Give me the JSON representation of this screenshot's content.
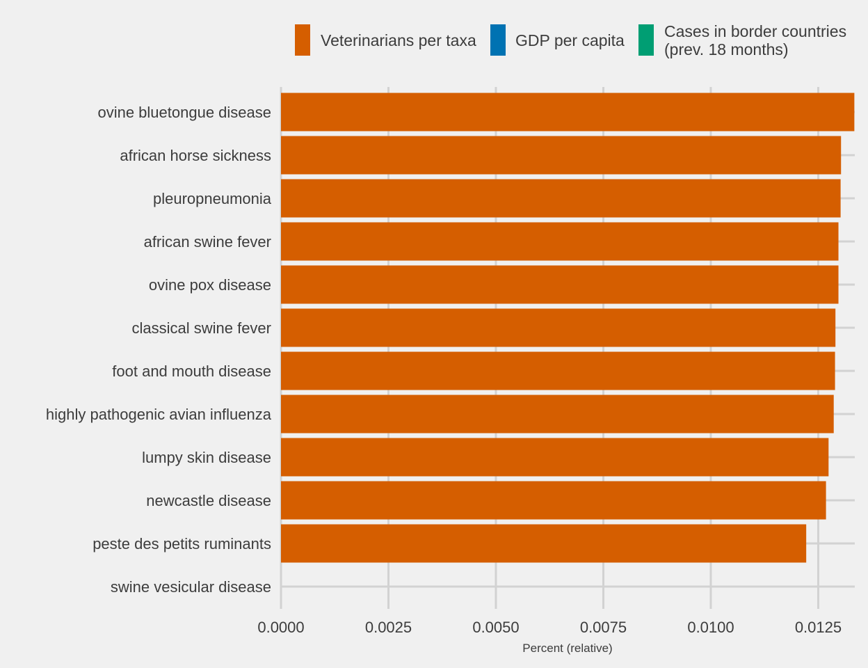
{
  "chart_data": {
    "type": "bar",
    "orientation": "horizontal",
    "title": "",
    "xlabel": "Percent (relative)",
    "ylabel": "",
    "xlim": [
      0,
      0.01335
    ],
    "xticks": [
      0,
      0.0025,
      0.005,
      0.0075,
      0.01,
      0.0125
    ],
    "xtick_labels": [
      "0.0000",
      "0.0025",
      "0.0050",
      "0.0075",
      "0.0100",
      "0.0125"
    ],
    "grid": true,
    "legend_position": "top-right",
    "legend": [
      {
        "label_lines": [
          "Veterinarians per taxa"
        ],
        "color": "#d55e00"
      },
      {
        "label_lines": [
          "GDP per capita"
        ],
        "color": "#0072b2"
      },
      {
        "label_lines": [
          "Cases in border countries",
          "(prev. 18 months)"
        ],
        "color": "#009e73"
      }
    ],
    "categories": [
      "ovine bluetongue disease",
      "african horse sickness",
      "pleuropneumonia",
      "african swine fever",
      "ovine pox disease",
      "classical swine fever",
      "foot and mouth disease",
      "highly pathogenic avian influenza",
      "lumpy skin disease",
      "newcastle disease",
      "peste des petits ruminants",
      "swine vesicular disease"
    ],
    "series": [
      {
        "name": "Veterinarians per taxa",
        "color": "#d55e00",
        "values": [
          0.01334,
          0.01303,
          0.01302,
          0.01297,
          0.01297,
          0.0129,
          0.01289,
          0.01286,
          0.01274,
          0.01268,
          0.01222,
          0
        ]
      }
    ]
  }
}
